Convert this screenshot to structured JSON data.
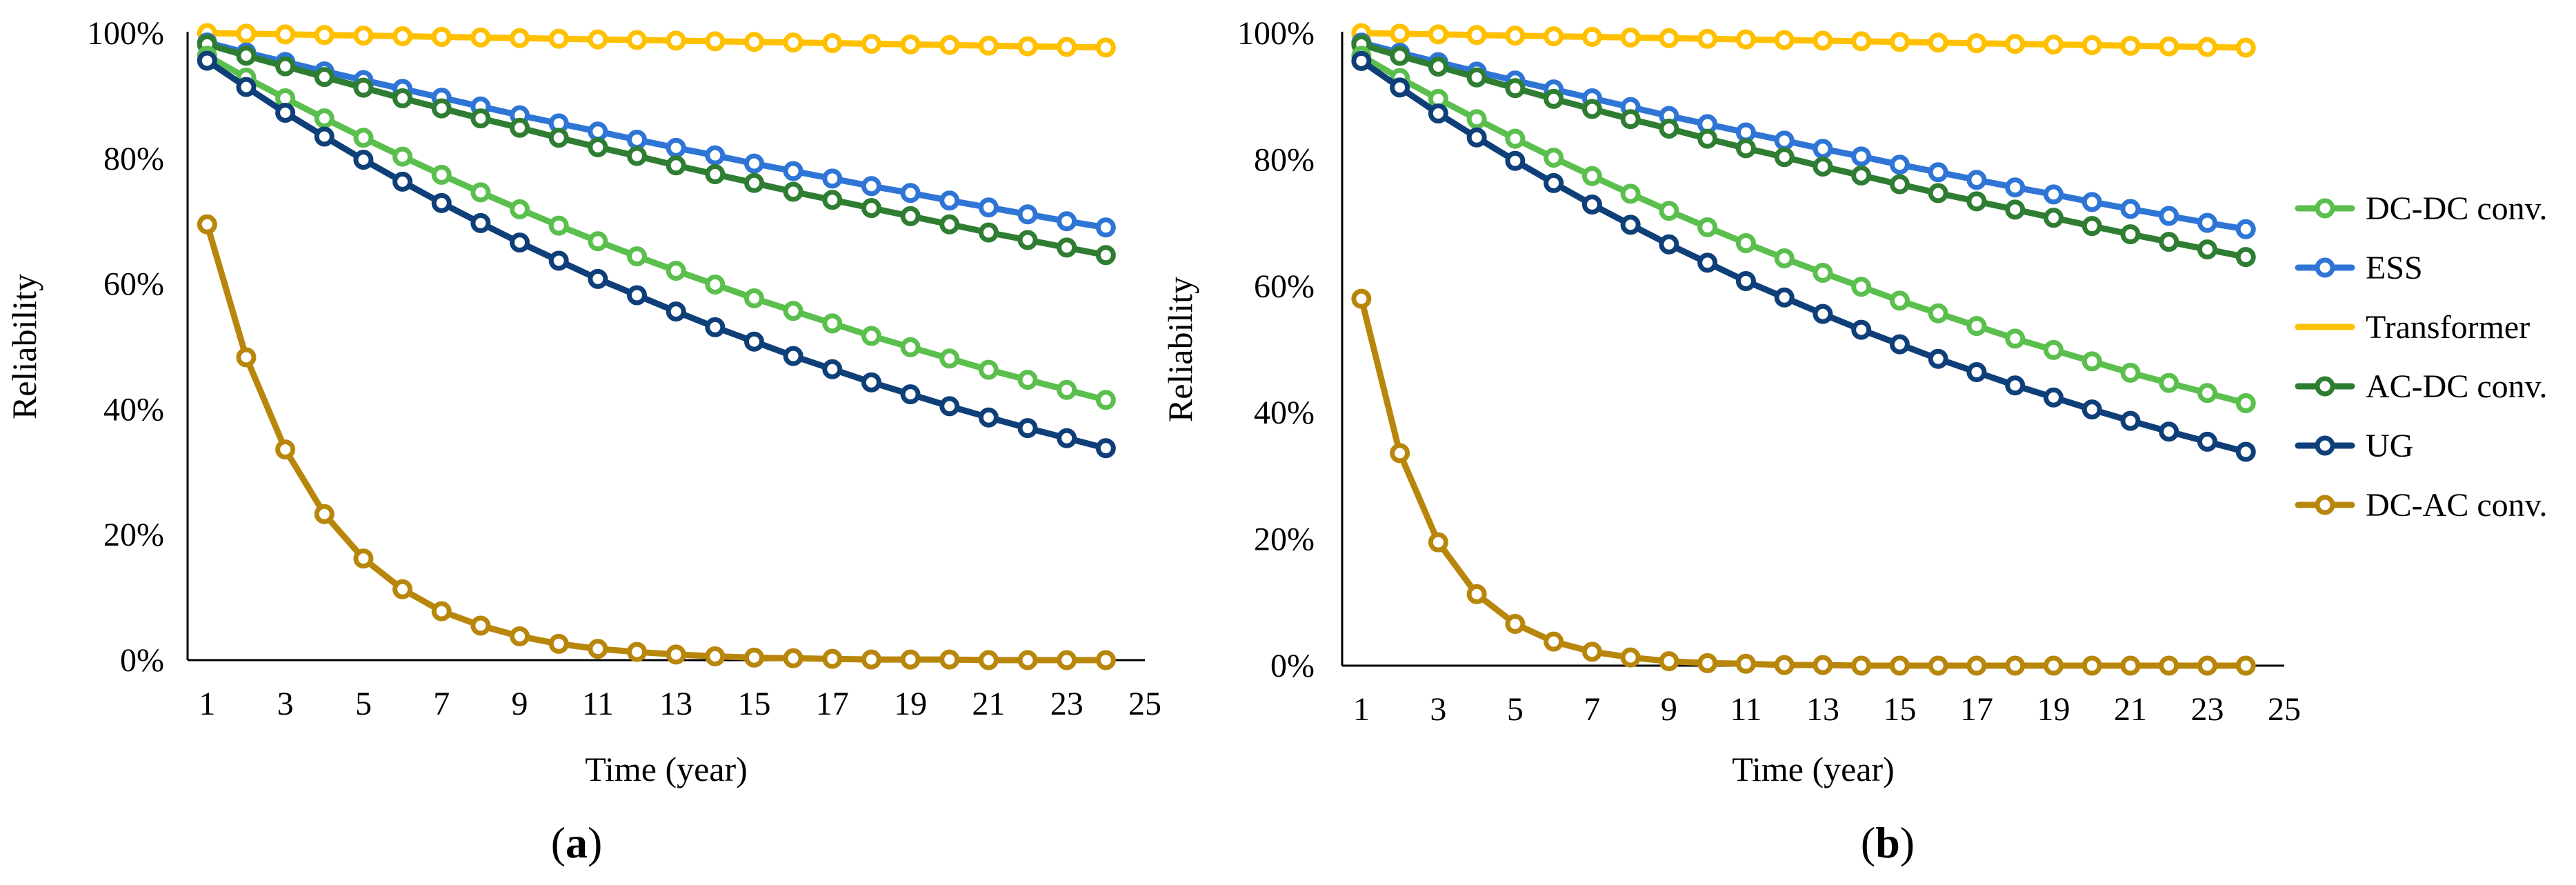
{
  "chart_data": [
    {
      "type": "line",
      "caption": "a",
      "xlabel": "Time (year)",
      "ylabel": "Reliability",
      "xlim": [
        0.5,
        25
      ],
      "ylim": [
        0,
        1
      ],
      "x_ticks": [
        "1",
        "3",
        "5",
        "7",
        "9",
        "11",
        "13",
        "15",
        "17",
        "19",
        "21",
        "23",
        "25"
      ],
      "y_ticks": [
        "0%",
        "20%",
        "40%",
        "60%",
        "80%",
        "100%"
      ],
      "x": [
        1,
        2,
        3,
        4,
        5,
        6,
        7,
        8,
        9,
        10,
        11,
        12,
        13,
        14,
        15,
        16,
        17,
        18,
        19,
        20,
        21,
        22,
        23,
        24
      ],
      "series": [
        {
          "name": "Transformer",
          "color": "#FFC000",
          "values": [
            1.0,
            0.999,
            0.998,
            0.997,
            0.996,
            0.995,
            0.994,
            0.993,
            0.992,
            0.991,
            0.99,
            0.989,
            0.988,
            0.987,
            0.986,
            0.985,
            0.984,
            0.983,
            0.982,
            0.981,
            0.98,
            0.979,
            0.978,
            0.977
          ]
        },
        {
          "name": "ESS",
          "color": "#2E75D6",
          "values": [
            0.985,
            0.969,
            0.954,
            0.939,
            0.925,
            0.911,
            0.897,
            0.883,
            0.869,
            0.856,
            0.843,
            0.83,
            0.817,
            0.805,
            0.792,
            0.78,
            0.768,
            0.756,
            0.745,
            0.733,
            0.722,
            0.711,
            0.7,
            0.69
          ]
        },
        {
          "name": "AC-DC conv.",
          "color": "#2E7D32",
          "values": [
            0.982,
            0.964,
            0.947,
            0.93,
            0.913,
            0.896,
            0.88,
            0.864,
            0.849,
            0.833,
            0.818,
            0.804,
            0.789,
            0.775,
            0.761,
            0.747,
            0.734,
            0.721,
            0.708,
            0.695,
            0.682,
            0.67,
            0.658,
            0.646
          ]
        },
        {
          "name": "DC-DC conv.",
          "color": "#5BBF4E",
          "values": [
            0.964,
            0.929,
            0.896,
            0.864,
            0.833,
            0.803,
            0.774,
            0.746,
            0.719,
            0.693,
            0.668,
            0.644,
            0.621,
            0.599,
            0.577,
            0.557,
            0.537,
            0.517,
            0.499,
            0.481,
            0.463,
            0.447,
            0.431,
            0.415
          ]
        },
        {
          "name": "UG",
          "color": "#0E3F78",
          "values": [
            0.956,
            0.914,
            0.873,
            0.835,
            0.798,
            0.763,
            0.729,
            0.697,
            0.666,
            0.637,
            0.608,
            0.582,
            0.556,
            0.531,
            0.508,
            0.485,
            0.464,
            0.443,
            0.424,
            0.405,
            0.387,
            0.37,
            0.354,
            0.338
          ]
        },
        {
          "name": "DC-AC conv.",
          "color": "#B8860B",
          "values": [
            0.695,
            0.483,
            0.336,
            0.233,
            0.162,
            0.113,
            0.078,
            0.055,
            0.038,
            0.026,
            0.018,
            0.013,
            0.009,
            0.006,
            0.004,
            0.003,
            0.002,
            0.001,
            0.001,
            0.001,
            0.0,
            0.0,
            0.0,
            0.0
          ]
        }
      ]
    },
    {
      "type": "line",
      "caption": "b",
      "xlabel": "Time (year)",
      "ylabel": "Reliability",
      "xlim": [
        0.5,
        25
      ],
      "ylim": [
        0,
        1
      ],
      "x_ticks": [
        "1",
        "3",
        "5",
        "7",
        "9",
        "11",
        "13",
        "15",
        "17",
        "19",
        "21",
        "23",
        "25"
      ],
      "y_ticks": [
        "0%",
        "20%",
        "40%",
        "60%",
        "80%",
        "100%"
      ],
      "x": [
        1,
        2,
        3,
        4,
        5,
        6,
        7,
        8,
        9,
        10,
        11,
        12,
        13,
        14,
        15,
        16,
        17,
        18,
        19,
        20,
        21,
        22,
        23,
        24
      ],
      "legend_position": "right",
      "series": [
        {
          "name": "Transformer",
          "color": "#FFC000",
          "values": [
            1.0,
            0.999,
            0.998,
            0.997,
            0.996,
            0.995,
            0.994,
            0.993,
            0.992,
            0.991,
            0.99,
            0.989,
            0.988,
            0.987,
            0.986,
            0.985,
            0.984,
            0.983,
            0.982,
            0.981,
            0.98,
            0.979,
            0.978,
            0.977
          ]
        },
        {
          "name": "ESS",
          "color": "#2E75D6",
          "values": [
            0.985,
            0.969,
            0.954,
            0.939,
            0.925,
            0.911,
            0.897,
            0.883,
            0.869,
            0.856,
            0.843,
            0.83,
            0.817,
            0.805,
            0.792,
            0.78,
            0.768,
            0.756,
            0.745,
            0.733,
            0.722,
            0.711,
            0.7,
            0.69
          ]
        },
        {
          "name": "AC-DC conv.",
          "color": "#2E7D32",
          "values": [
            0.982,
            0.964,
            0.947,
            0.93,
            0.913,
            0.896,
            0.88,
            0.864,
            0.849,
            0.833,
            0.818,
            0.804,
            0.789,
            0.775,
            0.761,
            0.747,
            0.734,
            0.721,
            0.708,
            0.695,
            0.682,
            0.67,
            0.658,
            0.646
          ]
        },
        {
          "name": "DC-DC conv.",
          "color": "#5BBF4E",
          "values": [
            0.964,
            0.929,
            0.896,
            0.864,
            0.833,
            0.803,
            0.774,
            0.746,
            0.719,
            0.693,
            0.668,
            0.644,
            0.621,
            0.599,
            0.577,
            0.557,
            0.537,
            0.517,
            0.499,
            0.481,
            0.463,
            0.447,
            0.431,
            0.415
          ]
        },
        {
          "name": "UG",
          "color": "#0E3F78",
          "values": [
            0.956,
            0.914,
            0.873,
            0.835,
            0.798,
            0.763,
            0.729,
            0.697,
            0.666,
            0.637,
            0.608,
            0.582,
            0.556,
            0.531,
            0.508,
            0.485,
            0.464,
            0.443,
            0.424,
            0.405,
            0.387,
            0.37,
            0.354,
            0.338
          ]
        },
        {
          "name": "DC-AC conv.",
          "color": "#B8860B",
          "values": [
            0.58,
            0.336,
            0.195,
            0.113,
            0.066,
            0.038,
            0.022,
            0.013,
            0.007,
            0.004,
            0.003,
            0.001,
            0.001,
            0.0,
            0.0,
            0.0,
            0.0,
            0.0,
            0.0,
            0.0,
            0.0,
            0.0,
            0.0,
            0.0
          ]
        }
      ]
    }
  ],
  "legend": {
    "items": [
      {
        "label": "DC-DC conv.",
        "color": "#5BBF4E"
      },
      {
        "label": "ESS",
        "color": "#2E75D6"
      },
      {
        "label": "Transformer",
        "color": "#FFC000"
      },
      {
        "label": "AC-DC conv.",
        "color": "#2E7D32"
      },
      {
        "label": "UG",
        "color": "#0E3F78"
      },
      {
        "label": "DC-AC conv.",
        "color": "#B8860B"
      }
    ]
  }
}
